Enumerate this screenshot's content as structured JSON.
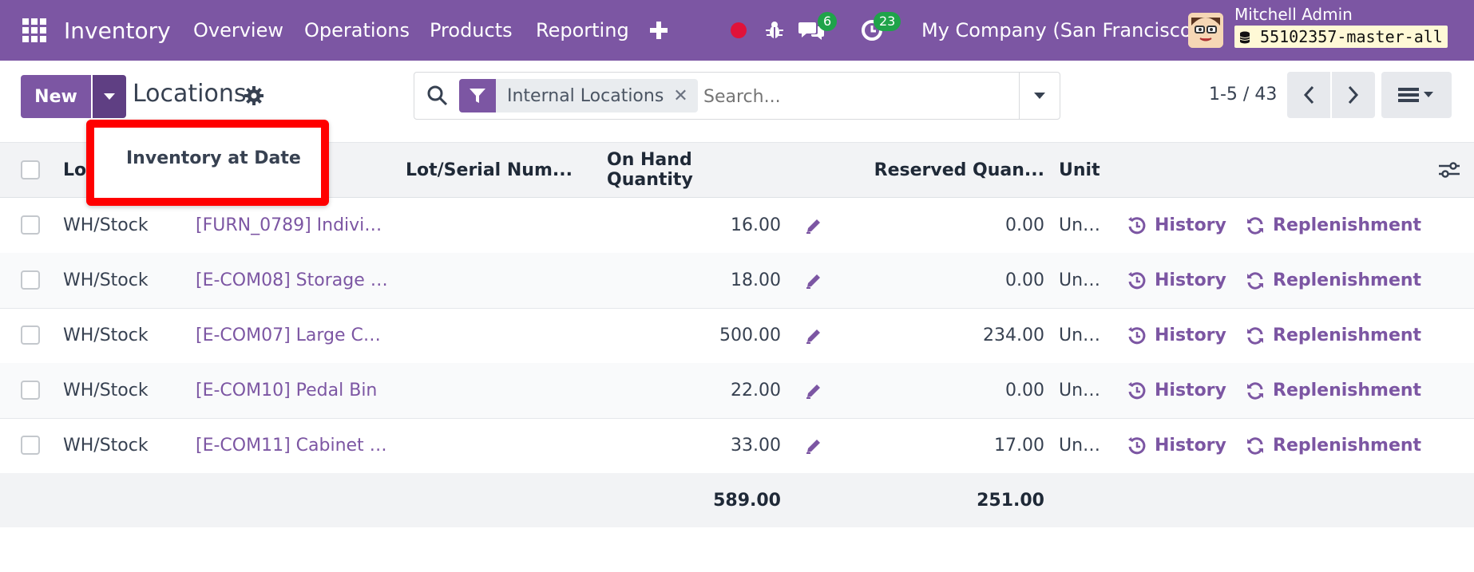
{
  "topbar": {
    "app_name": "Inventory",
    "menu": [
      "Overview",
      "Operations",
      "Products",
      "Reporting"
    ],
    "add_icon": "plus-icon",
    "record_icon": "record-dot-icon",
    "debug_icon": "bug-icon",
    "messages_count": "6",
    "activities_count": "23",
    "company": "My Company (San Francisco)",
    "user_name": "Mitchell Admin",
    "database": "55102357-master-all"
  },
  "control": {
    "new_label": "New",
    "page_title": "Locations",
    "dropdown_item": "Inventory at Date",
    "search_facet": "Internal Locations",
    "search_placeholder": "Search...",
    "pager": "1-5 / 43"
  },
  "table": {
    "headers": {
      "location": "Location",
      "lot": "Lot/Serial Num...",
      "on_hand": "On Hand Quantity",
      "reserved": "Reserved Quan...",
      "unit": "Unit"
    },
    "rows": [
      {
        "location": "WH/Stock",
        "product": "[FURN_0789] Indivi…",
        "on_hand": "16.00",
        "reserved": "0.00",
        "unit": "Un…",
        "history": "History",
        "replenish": "Replenishment"
      },
      {
        "location": "WH/Stock",
        "product": "[E-COM08] Storage …",
        "on_hand": "18.00",
        "reserved": "0.00",
        "unit": "Un…",
        "history": "History",
        "replenish": "Replenishment"
      },
      {
        "location": "WH/Stock",
        "product": "[E-COM07] Large C…",
        "on_hand": "500.00",
        "reserved": "234.00",
        "unit": "Un…",
        "history": "History",
        "replenish": "Replenishment"
      },
      {
        "location": "WH/Stock",
        "product": "[E-COM10] Pedal Bin",
        "on_hand": "22.00",
        "reserved": "0.00",
        "unit": "Un…",
        "history": "History",
        "replenish": "Replenishment"
      },
      {
        "location": "WH/Stock",
        "product": "[E-COM11] Cabinet …",
        "on_hand": "33.00",
        "reserved": "17.00",
        "unit": "Un…",
        "history": "History",
        "replenish": "Replenishment"
      }
    ],
    "totals": {
      "on_hand": "589.00",
      "reserved": "251.00"
    }
  },
  "colors": {
    "brand": "#7c56a3",
    "badge": "#1fa34a",
    "highlight": "#ff0000"
  }
}
